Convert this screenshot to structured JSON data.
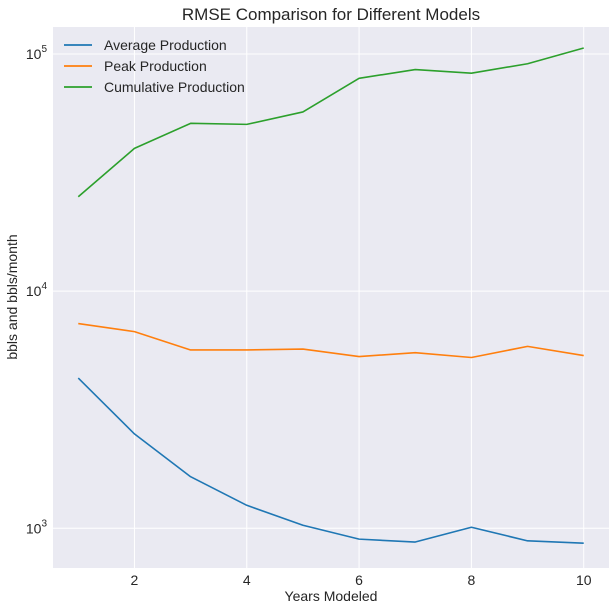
{
  "chart_data": {
    "type": "line",
    "title": "RMSE Comparison for Different Models",
    "xlabel": "Years Modeled",
    "ylabel": "bbls and bbls/month",
    "yscale": "log",
    "xlim": [
      0.55,
      10.45
    ],
    "ylim": [
      680,
      130000
    ],
    "xticks": [
      2,
      4,
      6,
      8,
      10
    ],
    "yticks": [
      {
        "value": 1000,
        "base": "10",
        "exp": "3"
      },
      {
        "value": 10000,
        "base": "10",
        "exp": "4"
      },
      {
        "value": 100000,
        "base": "10",
        "exp": "5"
      }
    ],
    "grid": true,
    "legend_position": "top-left",
    "x": [
      1,
      2,
      3,
      4,
      5,
      6,
      7,
      8,
      9,
      10
    ],
    "series": [
      {
        "name": "Average Production",
        "color": "#1f77b4",
        "values": [
          4300,
          2500,
          1650,
          1250,
          1030,
          900,
          875,
          1010,
          885,
          865
        ]
      },
      {
        "name": "Peak Production",
        "color": "#ff7f0e",
        "values": [
          7300,
          6750,
          5650,
          5650,
          5700,
          5300,
          5500,
          5250,
          5850,
          5350
        ]
      },
      {
        "name": "Cumulative Production",
        "color": "#2ca02c",
        "values": [
          25000,
          40000,
          51000,
          50500,
          57000,
          79000,
          86000,
          83000,
          91000,
          106000
        ]
      }
    ]
  }
}
